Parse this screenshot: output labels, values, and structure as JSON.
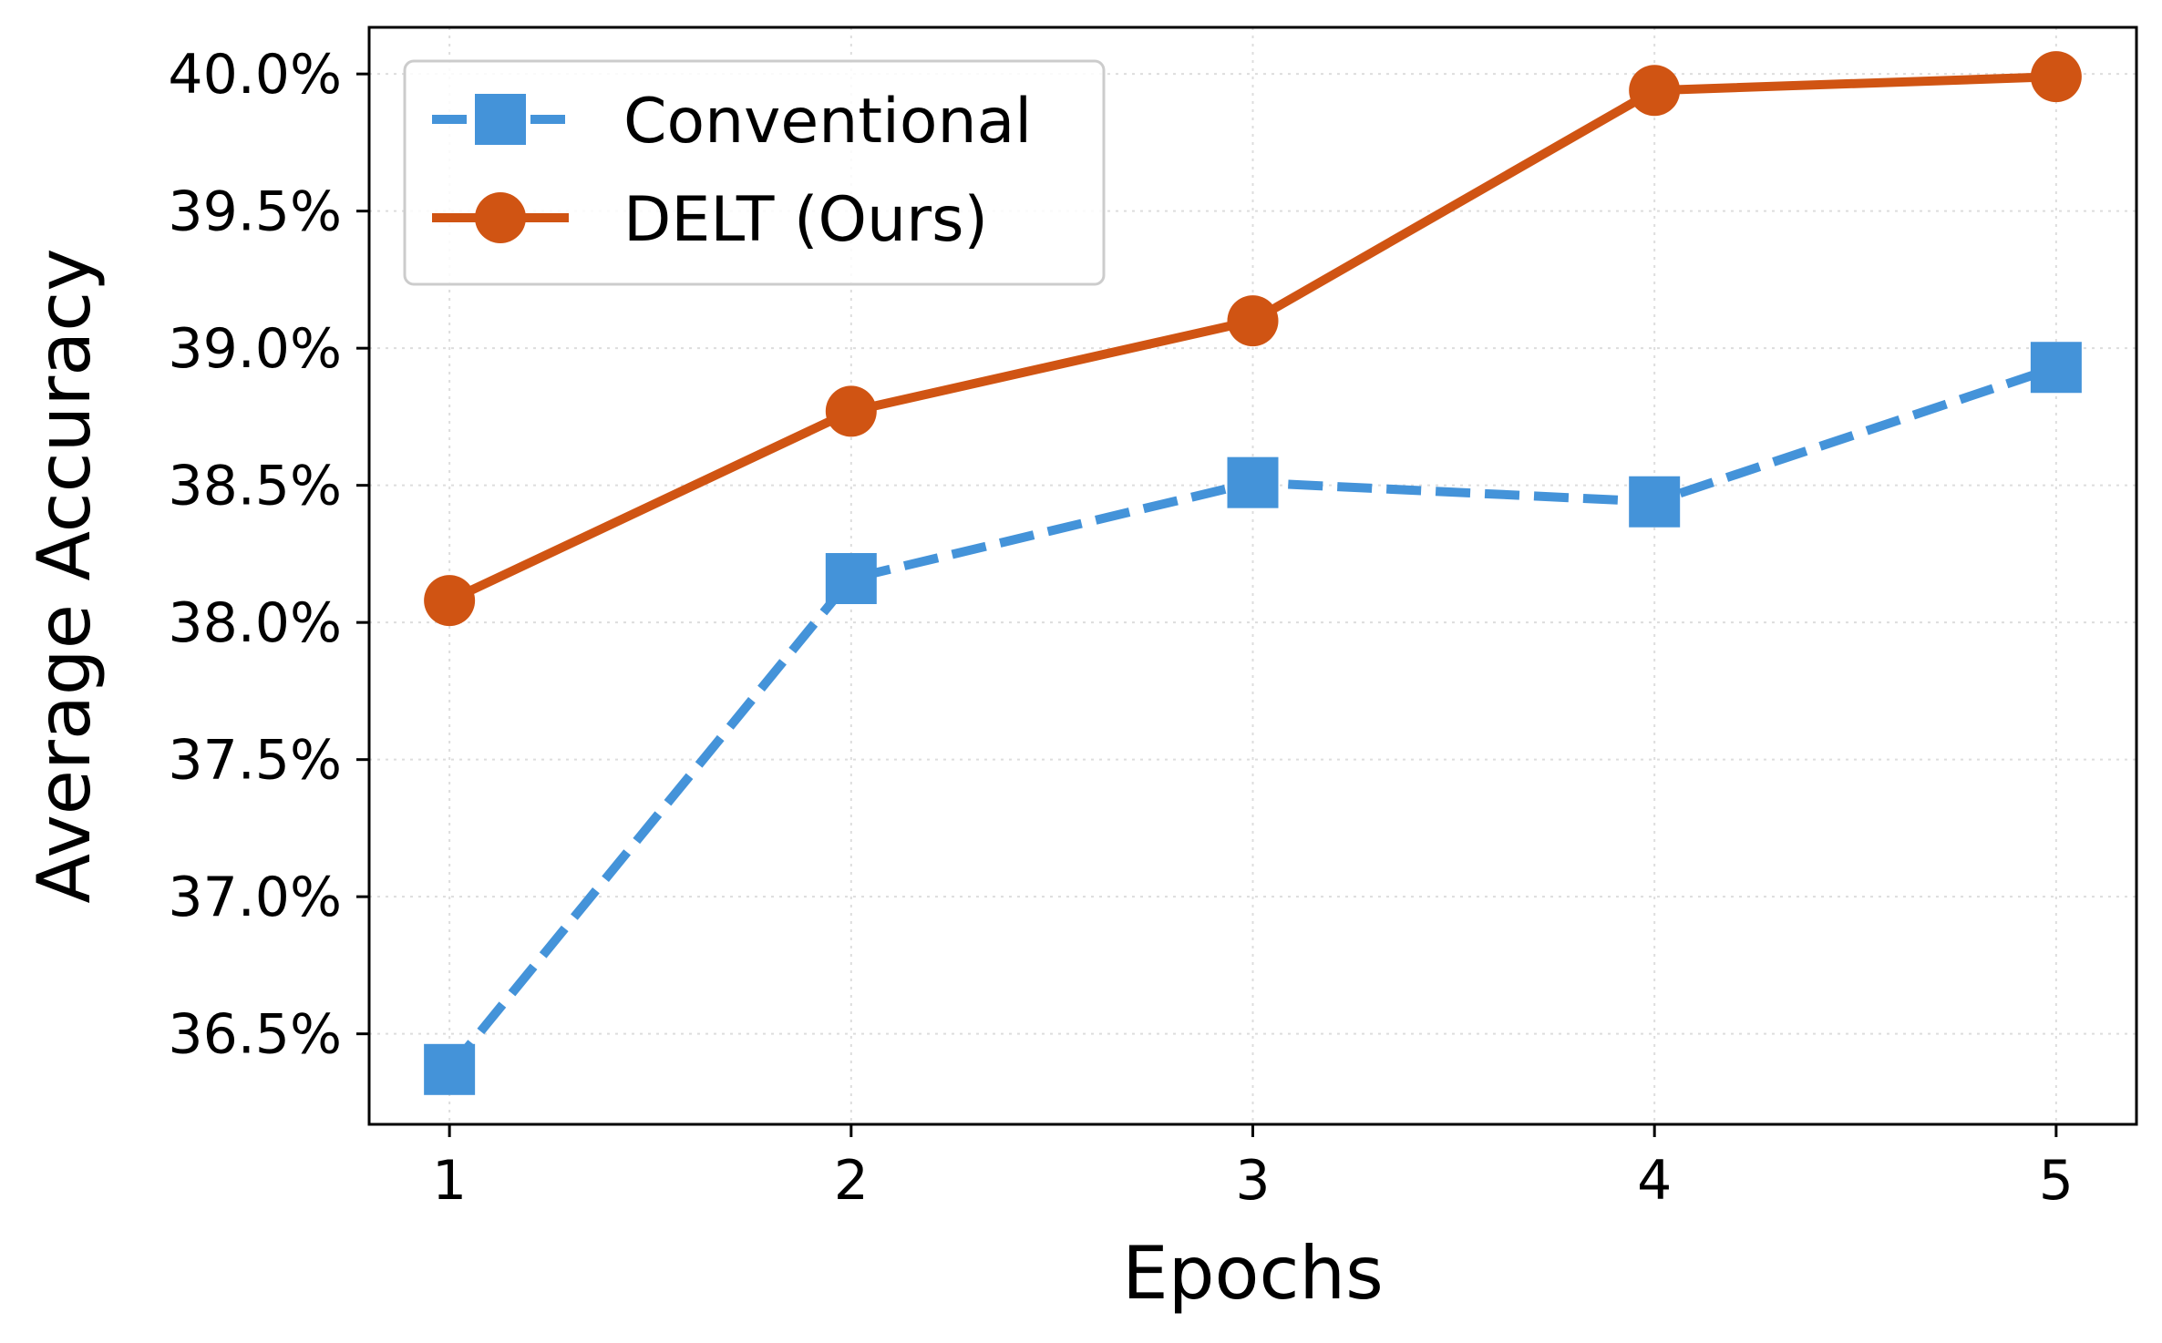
{
  "chart_data": {
    "type": "line",
    "title": "",
    "xlabel": "Epochs",
    "ylabel": "Average Accuracy",
    "x": [
      1,
      2,
      3,
      4,
      5
    ],
    "x_tick_labels": [
      "1",
      "2",
      "3",
      "4",
      "5"
    ],
    "xlim": [
      0.8,
      5.2
    ],
    "ylim": [
      36.17,
      40.17
    ],
    "y_ticks": [
      36.5,
      37.0,
      37.5,
      38.0,
      38.5,
      39.0,
      39.5,
      40.0
    ],
    "y_tick_labels": [
      "36.5%",
      "37.0%",
      "37.5%",
      "38.0%",
      "38.5%",
      "39.0%",
      "39.5%",
      "40.0%"
    ],
    "grid": true,
    "legend_position": "top-left",
    "series": [
      {
        "name": "Conventional",
        "values": [
          36.37,
          38.16,
          38.51,
          38.44,
          38.93
        ],
        "color": "#4493D9",
        "line_style": "dashed",
        "marker": "square"
      },
      {
        "name": "DELT (Ours)",
        "values": [
          38.08,
          38.77,
          39.1,
          39.94,
          39.99
        ],
        "color": "#D05413",
        "line_style": "solid",
        "marker": "circle"
      }
    ]
  }
}
